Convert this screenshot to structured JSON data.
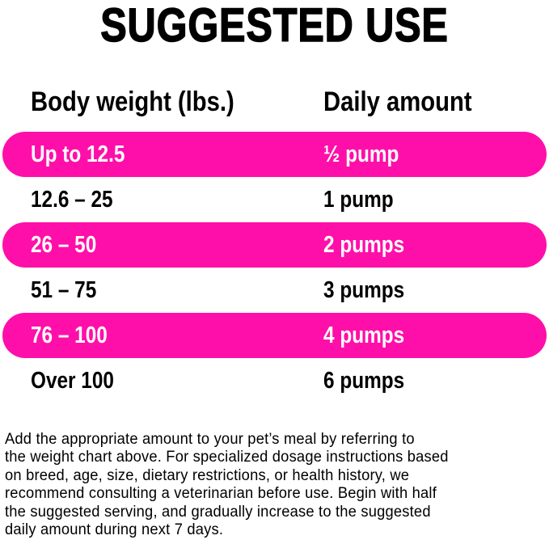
{
  "title": "SUGGESTED USE",
  "headers": {
    "weight": "Body weight (lbs.)",
    "amount": "Daily amount"
  },
  "rows": [
    {
      "weight": "Up to 12.5",
      "amount": "½ pump",
      "highlight": true
    },
    {
      "weight": "12.6 – 25",
      "amount": "1 pump",
      "highlight": false
    },
    {
      "weight": "26 – 50",
      "amount": "2 pumps",
      "highlight": true
    },
    {
      "weight": "51 – 75",
      "amount": "3 pumps",
      "highlight": false
    },
    {
      "weight": "76 – 100",
      "amount": "4 pumps",
      "highlight": true
    },
    {
      "weight": "Over 100",
      "amount": "6 pumps",
      "highlight": false
    }
  ],
  "paragraph_lines": [
    "Add the appropriate amount to your pet’s meal by referring to",
    "the weight chart above. For specialized dosage instructions based",
    "on breed, age, size, dietary restrictions, or health history, we",
    "recommend consulting a veterinarian before use. Begin with half",
    "the suggested serving, and gradually increase to the suggested",
    "daily amount during next 7 days."
  ],
  "colors": {
    "highlight": "#ff0fa9",
    "text": "#000000",
    "highlight_text": "#ffffff"
  }
}
